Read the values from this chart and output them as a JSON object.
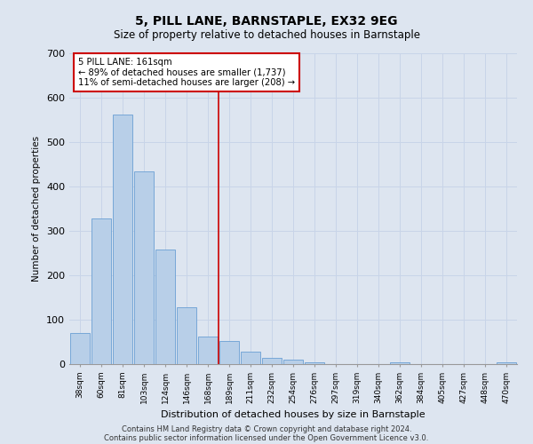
{
  "title1": "5, PILL LANE, BARNSTAPLE, EX32 9EG",
  "title2": "Size of property relative to detached houses in Barnstaple",
  "xlabel": "Distribution of detached houses by size in Barnstaple",
  "ylabel": "Number of detached properties",
  "categories": [
    "38sqm",
    "60sqm",
    "81sqm",
    "103sqm",
    "124sqm",
    "146sqm",
    "168sqm",
    "189sqm",
    "211sqm",
    "232sqm",
    "254sqm",
    "276sqm",
    "297sqm",
    "319sqm",
    "340sqm",
    "362sqm",
    "384sqm",
    "405sqm",
    "427sqm",
    "448sqm",
    "470sqm"
  ],
  "values": [
    70,
    328,
    563,
    435,
    258,
    128,
    63,
    52,
    29,
    15,
    11,
    5,
    0,
    0,
    0,
    5,
    0,
    0,
    0,
    0,
    5
  ],
  "bar_color": "#b8cfe8",
  "bar_edge_color": "#6a9fd4",
  "annotation_line1": "5 PILL LANE: 161sqm",
  "annotation_line2": "← 89% of detached houses are smaller (1,737)",
  "annotation_line3": "11% of semi-detached houses are larger (208) →",
  "annotation_box_color": "#ffffff",
  "annotation_box_edge": "#cc0000",
  "vline_color": "#cc0000",
  "grid_color": "#c8d4e8",
  "bg_color": "#dde5f0",
  "footer1": "Contains HM Land Registry data © Crown copyright and database right 2024.",
  "footer2": "Contains public sector information licensed under the Open Government Licence v3.0.",
  "ylim": [
    0,
    700
  ],
  "yticks": [
    0,
    100,
    200,
    300,
    400,
    500,
    600,
    700
  ],
  "vline_pos": 6.5
}
